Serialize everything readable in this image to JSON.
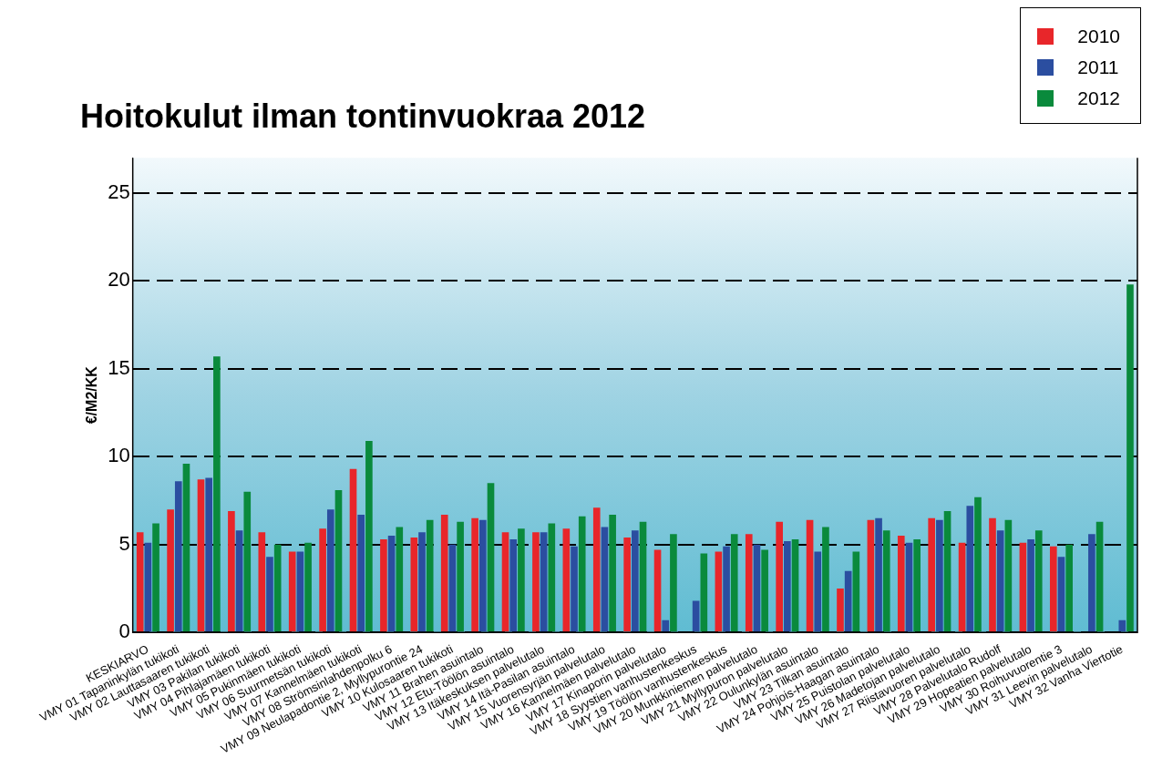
{
  "chart_data": {
    "type": "bar",
    "title": "Hoitokulut ilman tontinvuokraa 2012",
    "ylabel": "€/M2/KK",
    "categories": [
      "KESKIARVO",
      "VMY 01 Tapaninkylän tukikoti",
      "VMY 02 Lauttasaaren tukikoti",
      "VMY 03 Pakilan tukikoti",
      "VMY 04 Pihlajamäen tukikoti",
      "VMY 05 Pukinmäen tukikoti",
      "VMY 06 Suurmetsän tukikoti",
      "VMY 07 Kannelmäen tukikoti",
      "VMY 08 Strömsinlahdenpolku 6",
      "VMY 09 Neulapadontie 2, Myllypurontie 24",
      "VMY 10 Kulosaaren tukikoti",
      "VMY 11 Brahen asuintalo",
      "VMY 12 Etu-Töölön asuintalo",
      "VMY 13 Itäkeskuksen palvelutalo",
      "VMY 14 Itä-Pasilan asuintalo",
      "VMY 15 Vuorensyrjän palvelutalo",
      "VMY 16 Kannelmäen palvelutalo",
      "VMY 17 Kinaporin palvelutalo",
      "VMY 18 Syystien vanhustenkeskus",
      "VMY 19 Töölön vanhustenkeskus",
      "VMY 20 Munkkiniemen palvelutalo",
      "VMY 21 Myllypuron palvelutalo",
      "VMY 22 Oulunkylän asuintalo",
      "VMY 23 Tilkan asuintalo",
      "VMY 24 Pohjois-Haagan asuintalo",
      "VMY 25 Puistolan palvelutalo",
      "VMY 26 Madetojan palvelutalo",
      "VMY 27 Riistavuoren palvelutalo",
      "VMY 28 Palvelutalo Rudolf",
      "VMY 29 Hopeatien palvelutalo",
      "VMY 30 Roihuvuorentie 3",
      "VMY 31 Leevin palvelutalo",
      "VMY 32 Vanha Viertotie"
    ],
    "series": [
      {
        "name": "2010",
        "color": "#e8262a",
        "values": [
          5.7,
          7.0,
          8.7,
          6.9,
          5.7,
          4.6,
          5.9,
          9.3,
          5.3,
          5.4,
          6.7,
          6.5,
          5.7,
          5.7,
          5.9,
          7.1,
          5.4,
          4.7,
          null,
          4.6,
          5.6,
          6.3,
          6.4,
          2.5,
          6.4,
          5.5,
          6.5,
          5.1,
          6.5,
          5.1,
          4.9,
          null,
          null
        ]
      },
      {
        "name": "2011",
        "color": "#2b4ea0",
        "values": [
          5.1,
          8.6,
          8.8,
          5.8,
          4.3,
          4.6,
          7.0,
          6.7,
          5.5,
          5.7,
          5.0,
          6.4,
          5.3,
          5.7,
          4.9,
          6.0,
          5.8,
          0.7,
          1.8,
          4.9,
          5.0,
          5.2,
          4.6,
          3.5,
          6.5,
          5.1,
          6.4,
          7.2,
          5.8,
          5.3,
          4.3,
          5.6,
          0.7
        ]
      },
      {
        "name": "2012",
        "color": "#0a8a3c",
        "values": [
          6.2,
          9.6,
          15.7,
          8.0,
          5.0,
          5.1,
          8.1,
          10.9,
          6.0,
          6.4,
          6.3,
          8.5,
          5.9,
          6.2,
          6.6,
          6.7,
          6.3,
          5.6,
          4.5,
          5.6,
          4.7,
          5.3,
          6.0,
          4.6,
          5.8,
          5.3,
          6.9,
          7.7,
          6.4,
          5.8,
          5.0,
          6.3,
          19.8
        ]
      }
    ],
    "ylim": [
      0,
      27
    ],
    "yticks": [
      0,
      5,
      10,
      15,
      20,
      25
    ],
    "grid": "y",
    "legend": "top right"
  }
}
